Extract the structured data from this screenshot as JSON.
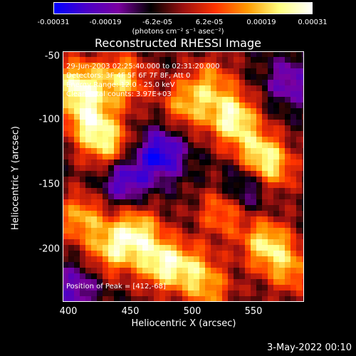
{
  "colorbar": {
    "colors": [
      "#0000ff",
      "#4b00c8",
      "#7a00a0",
      "#000000",
      "#9a1010",
      "#ff3300",
      "#ff9a00",
      "#ffff80",
      "#ffffff"
    ],
    "ticks": [
      "-0.00031",
      "-0.00019",
      "-6.2e-05",
      "6.2e-05",
      "0.00019",
      "0.00031"
    ],
    "units": "(photons cm⁻² s⁻¹ asec⁻²)"
  },
  "title": "Reconstructed RHESSI Image",
  "annotations": {
    "time": "29-Jun-2003 02:25:40.000 to 02:31:20.000",
    "detectors": "Detectors: 3F 4F 5F 6F 7F 8F, Att 0",
    "energy": "Energy Range: 12.0 - 25.0 keV",
    "method": "Clean     Total counts: 3.97E+03",
    "peak": "Position of Peak = [412,-68]"
  },
  "axes": {
    "xlabel": "Heliocentric X (arcsec)",
    "ylabel": "Heliocentric Y (arcsec)",
    "xticks": [
      "400",
      "450",
      "500",
      "550"
    ],
    "yticks": [
      "-50",
      "-100",
      "-150",
      "-200"
    ]
  },
  "datestamp": "3-May-2022 00:10",
  "chart_data": {
    "type": "heatmap",
    "title": "Reconstructed RHESSI Image",
    "xlabel": "Heliocentric X (arcsec)",
    "ylabel": "Heliocentric Y (arcsec)",
    "xlim": [
      390,
      586
    ],
    "ylim": [
      -240,
      -46
    ],
    "colorbar_range": [
      -0.00031,
      0.00031
    ],
    "colorbar_ticks": [
      -0.00031,
      -0.00019,
      -6.2e-05,
      6.2e-05,
      0.00019,
      0.00031
    ],
    "xticks": [
      400,
      450,
      500,
      550
    ],
    "yticks": [
      -50,
      -100,
      -150,
      -200
    ],
    "peak_position": [
      412,
      -68
    ],
    "energy_range_keV": [
      12.0,
      25.0
    ],
    "total_counts": 3970,
    "bright_sources": [
      {
        "x": 402,
        "y": -72,
        "rel_intensity": 0.95
      },
      {
        "x": 438,
        "y": -68,
        "rel_intensity": 0.8
      },
      {
        "x": 412,
        "y": -100,
        "rel_intensity": 0.85
      },
      {
        "x": 428,
        "y": -120,
        "rel_intensity": 0.75
      },
      {
        "x": 490,
        "y": -88,
        "rel_intensity": 0.65
      },
      {
        "x": 510,
        "y": -70,
        "rel_intensity": 0.55
      },
      {
        "x": 528,
        "y": -98,
        "rel_intensity": 1.0
      },
      {
        "x": 548,
        "y": -125,
        "rel_intensity": 0.7
      },
      {
        "x": 560,
        "y": -138,
        "rel_intensity": 0.65
      },
      {
        "x": 520,
        "y": -170,
        "rel_intensity": 0.6
      },
      {
        "x": 450,
        "y": -185,
        "rel_intensity": 0.8
      },
      {
        "x": 470,
        "y": -210,
        "rel_intensity": 0.9
      },
      {
        "x": 430,
        "y": -200,
        "rel_intensity": 0.75
      },
      {
        "x": 495,
        "y": -215,
        "rel_intensity": 0.6
      },
      {
        "x": 555,
        "y": -195,
        "rel_intensity": 0.85
      },
      {
        "x": 575,
        "y": -215,
        "rel_intensity": 0.6
      },
      {
        "x": 405,
        "y": -175,
        "rel_intensity": 0.7
      },
      {
        "x": 510,
        "y": -232,
        "rel_intensity": 0.5
      }
    ],
    "dark_regions": [
      {
        "x": 470,
        "y": -125,
        "rel_intensity": -0.8
      },
      {
        "x": 440,
        "y": -145,
        "rel_intensity": -0.7
      },
      {
        "x": 540,
        "y": -150,
        "rel_intensity": -0.6
      },
      {
        "x": 575,
        "y": -70,
        "rel_intensity": -0.5
      },
      {
        "x": 400,
        "y": -230,
        "rel_intensity": -0.5
      }
    ]
  }
}
